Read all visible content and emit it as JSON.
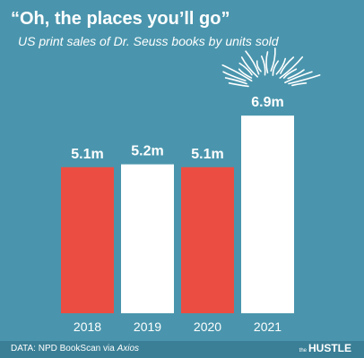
{
  "header": {
    "title": "“Oh, the places you’ll go”",
    "subtitle": "US print sales of Dr. Seuss books by units sold"
  },
  "footer": {
    "source_prefix": "DATA: NPD BookScan via ",
    "source_name": "Axios",
    "brand_small": "the",
    "brand": "HUSTLE"
  },
  "colors": {
    "background": "#4a95ad",
    "bar_red": "#ec4d42",
    "bar_white": "#ffffff",
    "text": "#ffffff"
  },
  "chart_data": {
    "type": "bar",
    "categories": [
      "2018",
      "2019",
      "2020",
      "2021"
    ],
    "values": [
      5.1,
      5.2,
      5.1,
      6.9
    ],
    "value_labels": [
      "5.1m",
      "5.2m",
      "5.1m",
      "6.9m"
    ],
    "bar_colors": [
      "#ec4d42",
      "#ffffff",
      "#ec4d42",
      "#ffffff"
    ],
    "unit": "million units",
    "title": "“Oh, the places you’ll go”",
    "subtitle": "US print sales of Dr. Seuss books by units sold",
    "grid": false,
    "legend": "none",
    "annotation": "scribble burst above 2021 bar"
  }
}
